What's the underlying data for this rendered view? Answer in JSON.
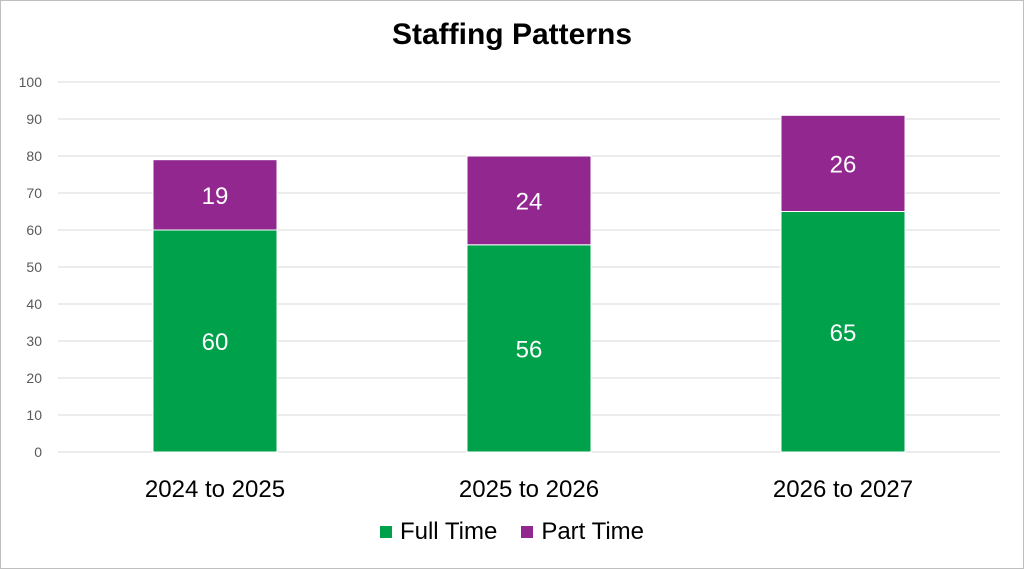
{
  "chart_data": {
    "type": "bar",
    "stacked": true,
    "title": "Staffing Patterns",
    "categories": [
      "2024 to 2025",
      "2025 to 2026",
      "2026 to 2027"
    ],
    "series": [
      {
        "name": "Full Time",
        "values": [
          60,
          56,
          65
        ],
        "color": "#00a14b"
      },
      {
        "name": "Part Time",
        "values": [
          19,
          24,
          26
        ],
        "color": "#92278f"
      }
    ],
    "ylim": [
      0,
      100
    ],
    "yticks": [
      0,
      10,
      20,
      30,
      40,
      50,
      60,
      70,
      80,
      90,
      100
    ],
    "grid": true,
    "legend": "bottom",
    "data_label_color": "#ffffff"
  }
}
